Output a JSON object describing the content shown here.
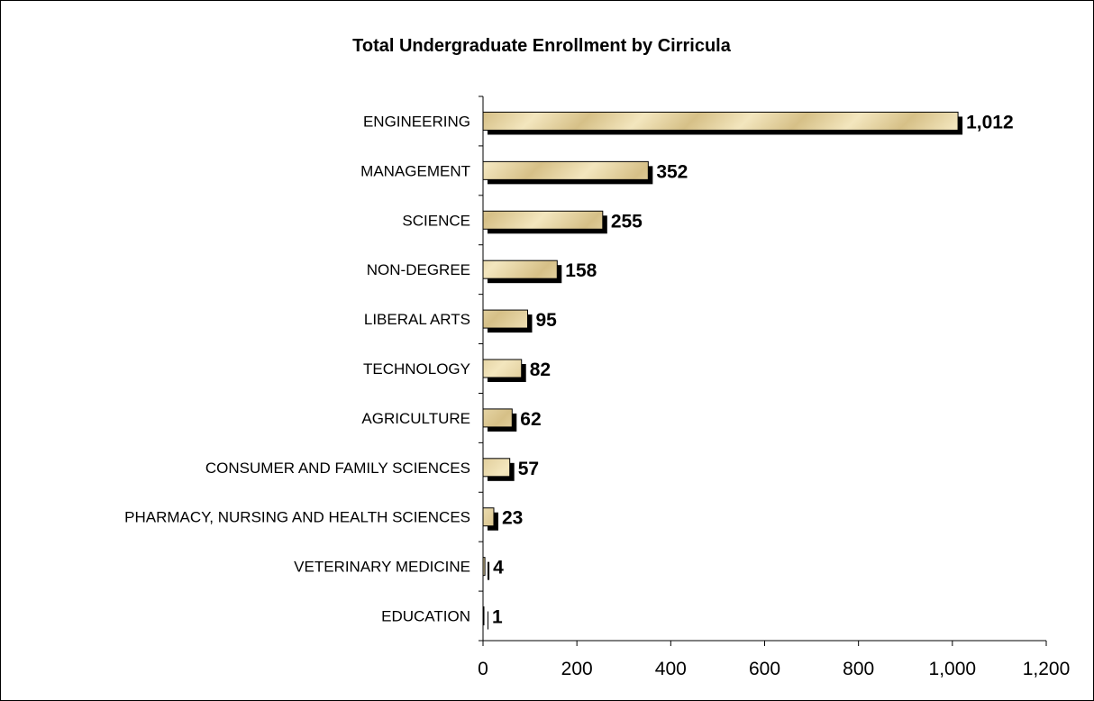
{
  "chart_data": {
    "type": "bar",
    "orientation": "horizontal",
    "title": "Total Undergraduate Enrollment by Cirricula",
    "categories": [
      "ENGINEERING",
      "MANAGEMENT",
      "SCIENCE",
      "NON-DEGREE",
      "LIBERAL ARTS",
      "TECHNOLOGY",
      "AGRICULTURE",
      "CONSUMER AND FAMILY SCIENCES",
      "PHARMACY, NURSING AND HEALTH SCIENCES",
      "VETERINARY MEDICINE",
      "EDUCATION"
    ],
    "values": [
      1012,
      352,
      255,
      158,
      95,
      82,
      62,
      57,
      23,
      4,
      1
    ],
    "value_labels": [
      "1,012",
      "352",
      "255",
      "158",
      "95",
      "82",
      "62",
      "57",
      "23",
      "4",
      "1"
    ],
    "xlim": [
      0,
      1200
    ],
    "x_ticks": [
      0,
      200,
      400,
      600,
      800,
      1000,
      1200
    ],
    "x_tick_labels": [
      "0",
      "200",
      "400",
      "600",
      "800",
      "1,000",
      "1,200"
    ],
    "xlabel": "",
    "ylabel": "",
    "grid": false,
    "legend": "none",
    "colors": {
      "bar_fill_light": "#f3e6be",
      "bar_fill_dark": "#d6c087",
      "bar_outline": "#000000",
      "bar_shadow": "#000000",
      "axis": "#000000",
      "text": "#000000"
    }
  }
}
